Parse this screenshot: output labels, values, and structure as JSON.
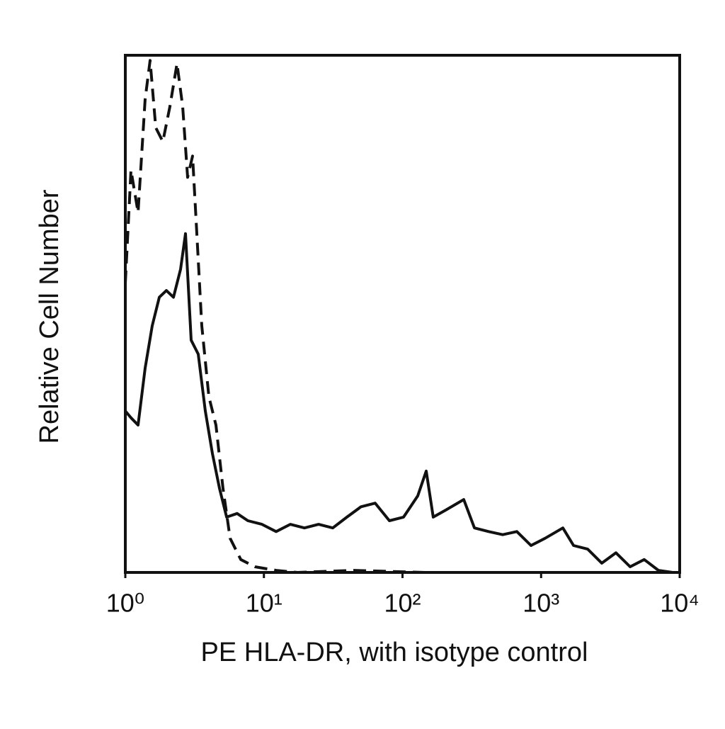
{
  "chart_data": {
    "type": "line",
    "x_label": "PE HLA-DR, with isotype control",
    "y_label": "Relative Cell Number",
    "x_scale": "log",
    "xlim": [
      1,
      10000
    ],
    "xticks": [
      {
        "value": 1,
        "label": "10⁰"
      },
      {
        "value": 10,
        "label": "10¹"
      },
      {
        "value": 100,
        "label": "10²"
      },
      {
        "value": 1000,
        "label": "10³"
      },
      {
        "value": 10000,
        "label": "10⁴"
      }
    ],
    "ylim": [
      0,
      100
    ],
    "grid": false,
    "series": [
      {
        "color": "#111111",
        "dash": false,
        "x": [
          1,
          1.099,
          1.236,
          1.39,
          1.564,
          1.759,
          1.978,
          2.225,
          2.502,
          2.718,
          2.985,
          3.357,
          3.776,
          4.248,
          4.786,
          5.38,
          6.41,
          7.66,
          9.68,
          12.25,
          15.5,
          19.6,
          24.8,
          31.4,
          39.7,
          50.2,
          63.5,
          80.4,
          101.8,
          128.8,
          148.3,
          166.7,
          206.1,
          276.7,
          330.3,
          417.8,
          528.4,
          668.4,
          845.3,
          1069,
          1435,
          1714,
          2168,
          2742,
          3468,
          4387,
          5548,
          7027,
          8890
        ],
        "values": [
          31.2,
          29.9,
          28.5,
          39.5,
          47.7,
          53.2,
          54.5,
          53.2,
          58.6,
          65.5,
          44.9,
          42.2,
          31.2,
          23.0,
          16.2,
          10.7,
          11.4,
          10.0,
          9.3,
          7.9,
          9.3,
          8.6,
          9.3,
          8.6,
          10.7,
          12.7,
          13.4,
          10.0,
          10.7,
          14.8,
          19.6,
          10.7,
          12.1,
          14.1,
          8.6,
          7.9,
          7.3,
          7.9,
          5.2,
          6.6,
          8.6,
          5.2,
          4.5,
          1.8,
          3.8,
          1.1,
          2.5,
          0.4,
          0
        ]
      },
      {
        "color": "#111111",
        "dash": true,
        "x": [
          1,
          1.099,
          1.236,
          1.39,
          1.509,
          1.658,
          1.865,
          2.099,
          2.36,
          2.593,
          2.817,
          3.057,
          3.28,
          3.563,
          4.008,
          4.508,
          5.07,
          5.7,
          6.81,
          8.61,
          12.25,
          17.43,
          44.7,
          144.9,
          1524,
          10000
        ],
        "values": [
          55.9,
          77.8,
          69.6,
          91.5,
          99,
          86,
          83.3,
          90.1,
          98.4,
          90.1,
          76.4,
          80.5,
          65.5,
          47.7,
          34,
          28.5,
          16.2,
          6.6,
          2.5,
          1.1,
          0.4,
          0,
          0.4,
          0,
          0,
          0
        ]
      }
    ]
  }
}
